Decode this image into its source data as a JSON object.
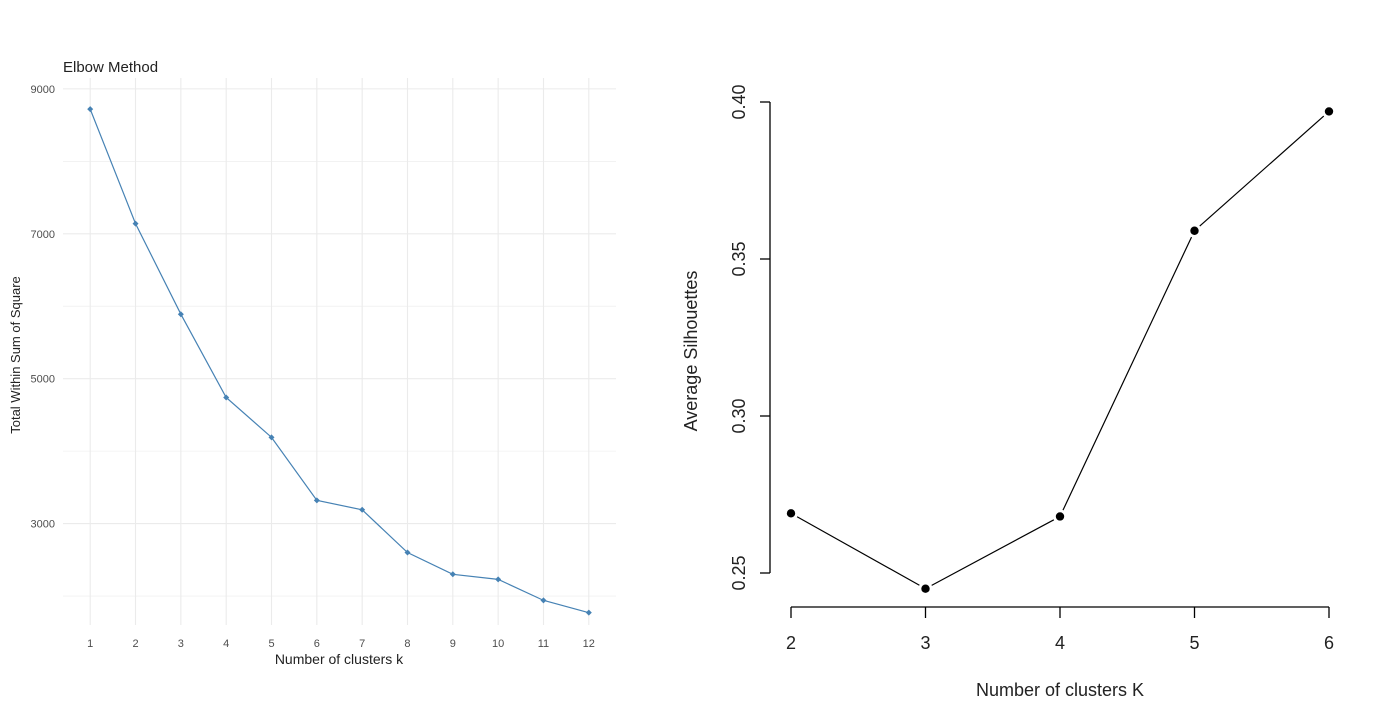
{
  "chart_data": [
    {
      "type": "line",
      "title": "Elbow Method",
      "xlabel": "Number of clusters k",
      "ylabel": "Total Within Sum of Square",
      "x": [
        1,
        2,
        3,
        4,
        5,
        6,
        7,
        8,
        9,
        10,
        11,
        12
      ],
      "x_tick_labels": [
        "1",
        "2",
        "3",
        "4",
        "5",
        "6",
        "7",
        "8",
        "9",
        "10",
        "11",
        "12"
      ],
      "y_ticks": [
        3000,
        5000,
        7000,
        9000
      ],
      "y_tick_labels": [
        "3000",
        "5000",
        "7000",
        "9000"
      ],
      "ylim": [
        1600,
        9150
      ],
      "series": [
        {
          "values": [
            8720,
            7140,
            5890,
            4740,
            4190,
            3320,
            3190,
            2600,
            2300,
            2230,
            1940,
            1770
          ]
        }
      ],
      "grid": true,
      "colors": {
        "line": "#4682b4",
        "grid": "#ebebeb",
        "text": "#222222",
        "tick_text": "#4d4d4d"
      }
    },
    {
      "type": "line",
      "title": "",
      "xlabel": "Number of clusters K",
      "ylabel": "Average Silhouettes",
      "x": [
        2,
        3,
        4,
        5,
        6
      ],
      "x_tick_labels": [
        "2",
        "3",
        "4",
        "5",
        "6"
      ],
      "y_ticks": [
        0.25,
        0.3,
        0.35,
        0.4
      ],
      "y_tick_labels": [
        "0.25",
        "0.30",
        "0.35",
        "0.40"
      ],
      "ylim": [
        0.2435,
        0.4
      ],
      "series": [
        {
          "values": [
            0.269,
            0.245,
            0.268,
            0.359,
            0.397
          ]
        }
      ],
      "grid": false,
      "colors": {
        "line": "#000000",
        "text": "#222222"
      }
    }
  ]
}
